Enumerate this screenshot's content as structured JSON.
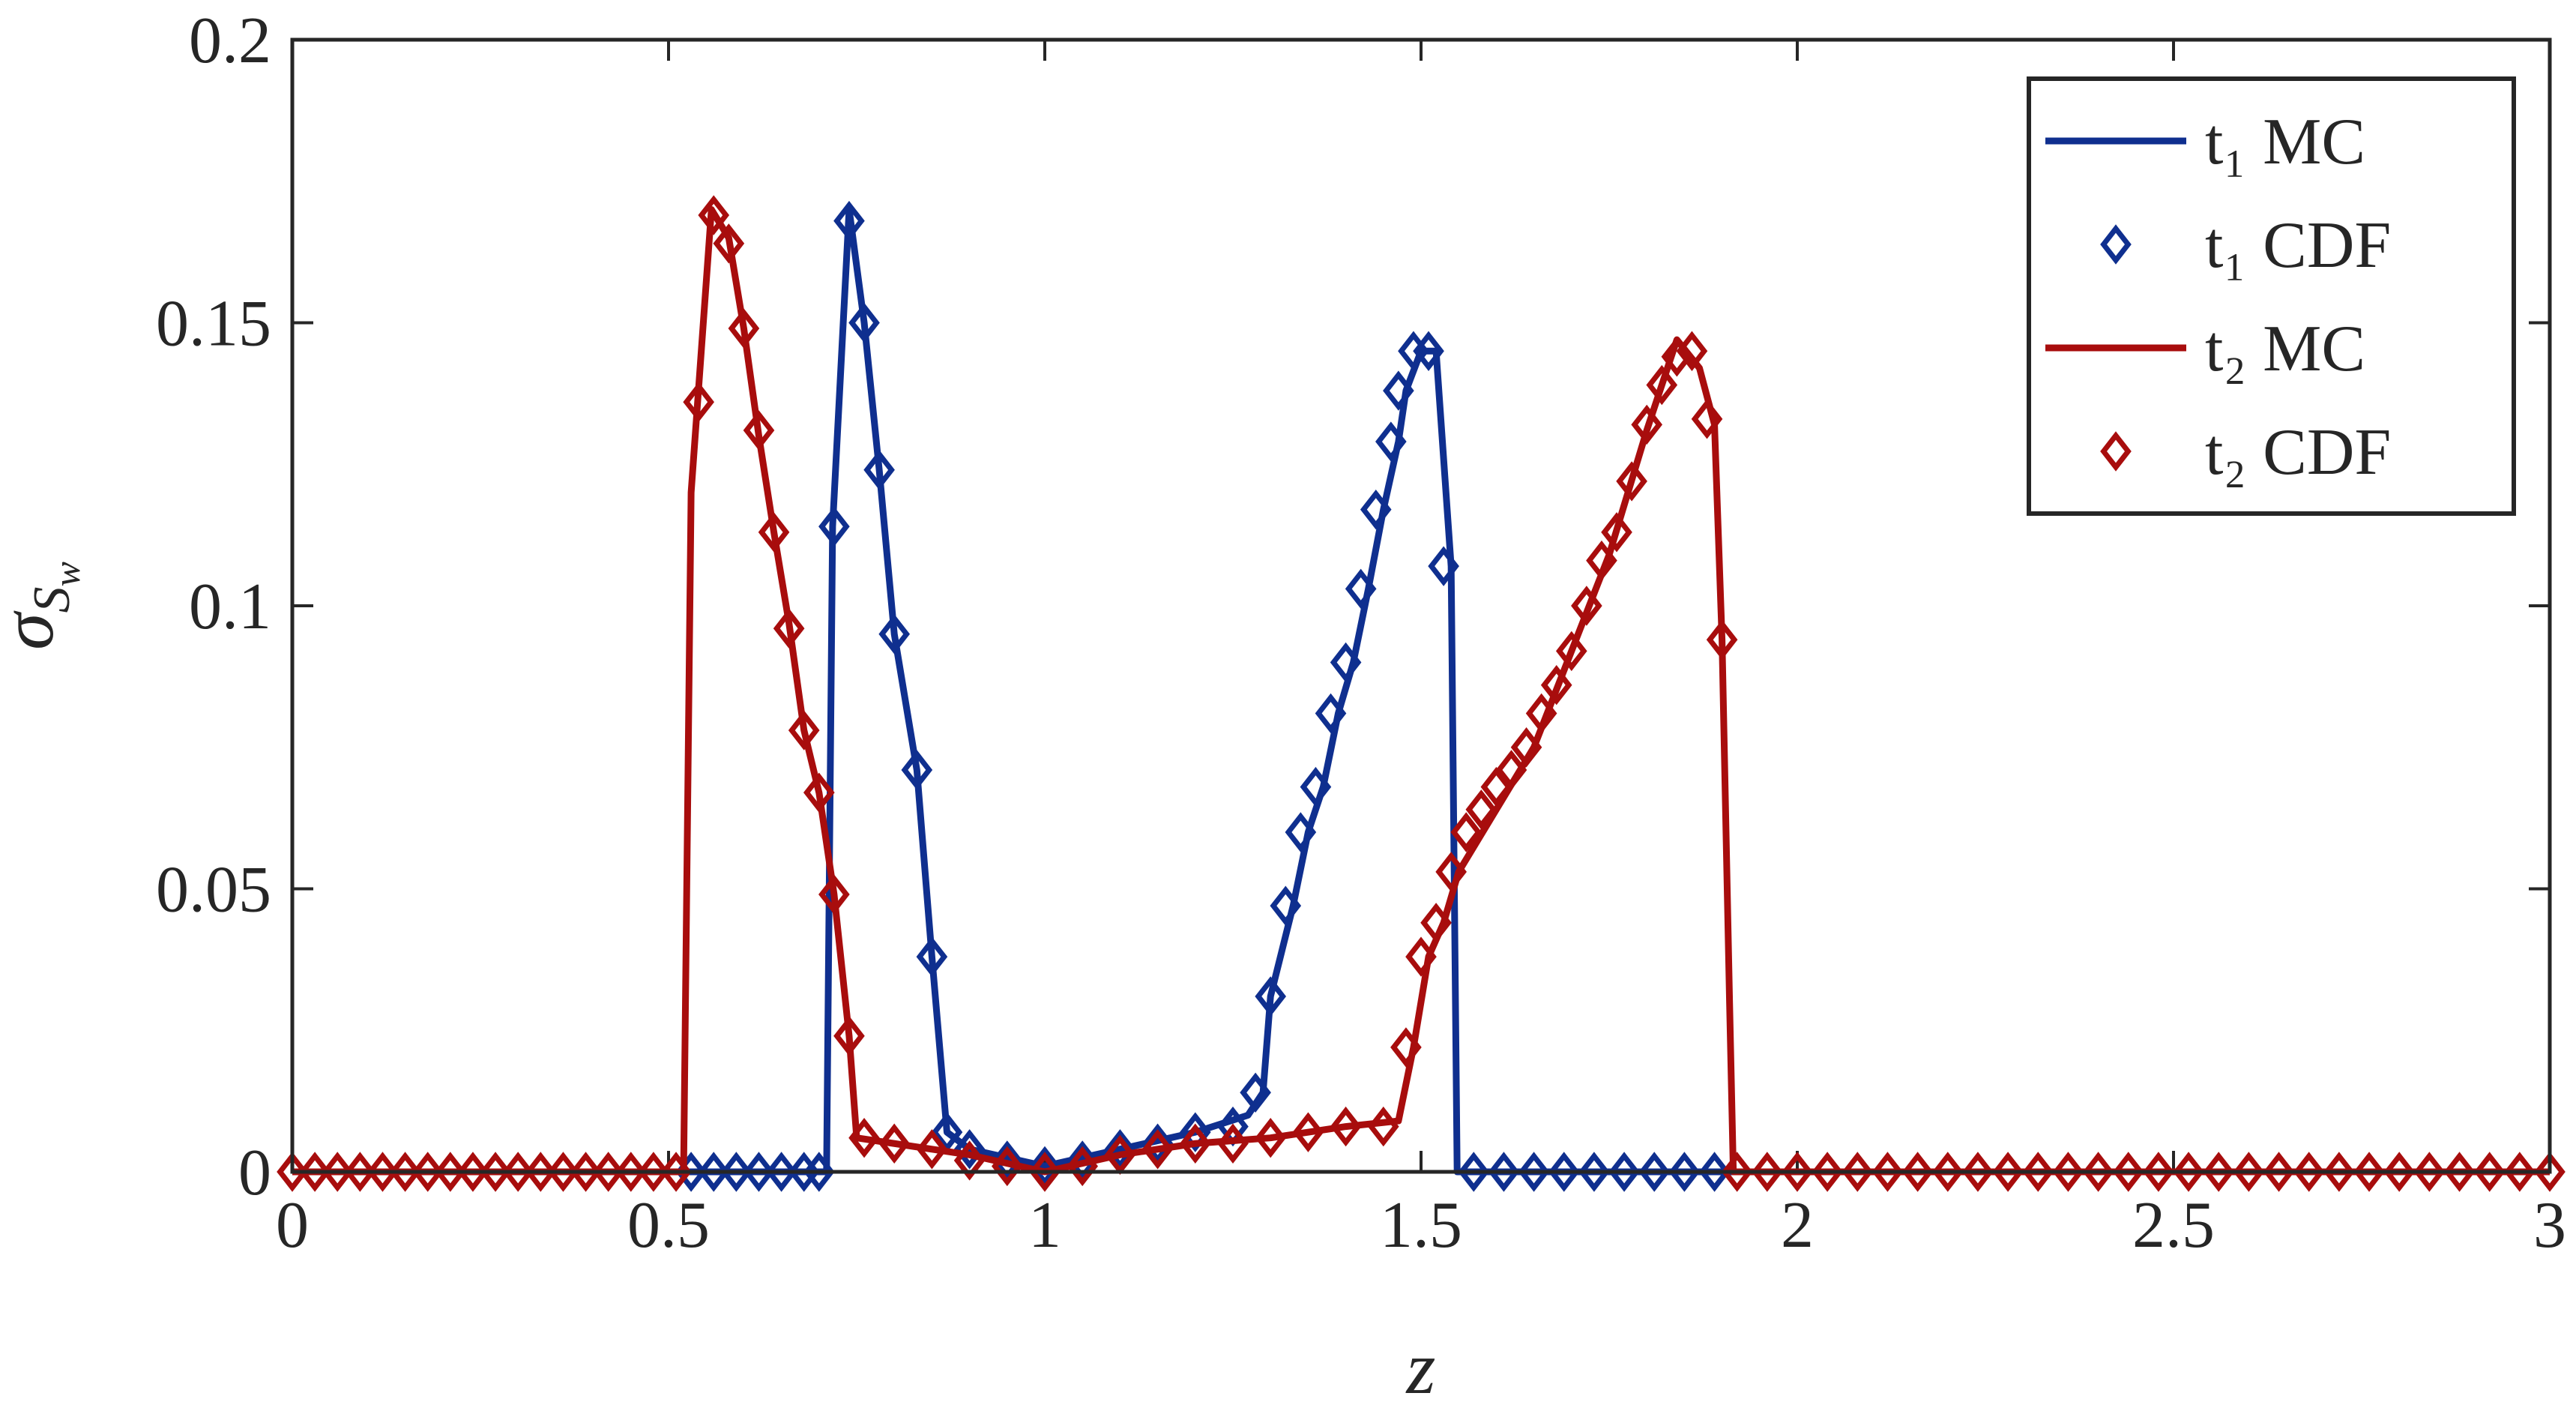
{
  "chart_data": {
    "type": "line",
    "xlabel": "z",
    "ylabel": [
      "σ",
      "S",
      "w"
    ],
    "xlim": [
      0,
      3
    ],
    "ylim": [
      0,
      0.2
    ],
    "xticks": [
      0,
      0.5,
      1,
      1.5,
      2,
      2.5,
      3
    ],
    "yticks": [
      0,
      0.05,
      0.1,
      0.15,
      0.2
    ],
    "grid": false,
    "legend": "northeast",
    "series": [
      {
        "name": "t₁ MC",
        "color": "#0f2f8f",
        "style": "line",
        "x": [
          0,
          0.71,
          0.718,
          0.74,
          0.76,
          0.78,
          0.8,
          0.83,
          0.85,
          0.87,
          0.9,
          1.0,
          1.1,
          1.2,
          1.27,
          1.29,
          1.3,
          1.33,
          1.35,
          1.37,
          1.39,
          1.41,
          1.43,
          1.45,
          1.47,
          1.48,
          1.5,
          1.52,
          1.54,
          1.548,
          3
        ],
        "values": [
          0,
          0,
          0.114,
          0.17,
          0.15,
          0.124,
          0.095,
          0.071,
          0.038,
          0.007,
          0.004,
          0.001,
          0.004,
          0.007,
          0.01,
          0.014,
          0.031,
          0.047,
          0.06,
          0.068,
          0.081,
          0.09,
          0.103,
          0.117,
          0.129,
          0.138,
          0.145,
          0.145,
          0.107,
          0,
          0
        ]
      },
      {
        "name": "t₁ CDF",
        "color": "#0f2f8f",
        "style": "marker",
        "x": [
          0.53,
          0.56,
          0.59,
          0.62,
          0.65,
          0.68,
          0.7,
          0.72,
          0.74,
          0.76,
          0.78,
          0.8,
          0.83,
          0.85,
          0.87,
          0.9,
          0.95,
          1.0,
          1.05,
          1.1,
          1.15,
          1.2,
          1.25,
          1.28,
          1.3,
          1.32,
          1.34,
          1.36,
          1.38,
          1.4,
          1.42,
          1.44,
          1.46,
          1.47,
          1.49,
          1.51,
          1.53,
          1.57,
          1.61,
          1.65,
          1.69,
          1.73,
          1.77,
          1.81,
          1.85,
          1.89
        ],
        "values": [
          0,
          0,
          0,
          0,
          0,
          0,
          0,
          0.114,
          0.168,
          0.15,
          0.124,
          0.095,
          0.071,
          0.038,
          0.007,
          0.004,
          0.002,
          0.001,
          0.002,
          0.004,
          0.005,
          0.007,
          0.008,
          0.014,
          0.031,
          0.047,
          0.06,
          0.068,
          0.081,
          0.09,
          0.103,
          0.117,
          0.129,
          0.138,
          0.145,
          0.145,
          0.107,
          0,
          0,
          0,
          0,
          0,
          0,
          0,
          0,
          0
        ]
      },
      {
        "name": "t₂ MC",
        "color": "#a80d0d",
        "style": "line",
        "x": [
          0,
          0.52,
          0.53,
          0.557,
          0.58,
          0.6,
          0.62,
          0.64,
          0.66,
          0.68,
          0.7,
          0.72,
          0.74,
          0.75,
          0.8,
          0.9,
          1.0,
          1.1,
          1.2,
          1.3,
          1.4,
          1.47,
          1.49,
          1.51,
          1.53,
          1.55,
          1.6,
          1.65,
          1.7,
          1.75,
          1.8,
          1.84,
          1.87,
          1.89,
          1.9,
          1.91,
          1.915,
          3
        ],
        "values": [
          0,
          0,
          0.12,
          0.17,
          0.165,
          0.149,
          0.13,
          0.113,
          0.097,
          0.078,
          0.067,
          0.049,
          0.024,
          0.006,
          0.005,
          0.003,
          0,
          0.003,
          0.005,
          0.006,
          0.008,
          0.009,
          0.022,
          0.038,
          0.044,
          0.053,
          0.064,
          0.075,
          0.092,
          0.109,
          0.131,
          0.147,
          0.142,
          0.132,
          0.094,
          0.03,
          0,
          0
        ]
      },
      {
        "name": "t₂ CDF",
        "color": "#a80d0d",
        "style": "marker",
        "x": [
          0,
          0.03,
          0.06,
          0.09,
          0.12,
          0.15,
          0.18,
          0.21,
          0.24,
          0.27,
          0.3,
          0.33,
          0.36,
          0.39,
          0.42,
          0.45,
          0.48,
          0.51,
          0.54,
          0.56,
          0.58,
          0.6,
          0.62,
          0.64,
          0.66,
          0.68,
          0.7,
          0.72,
          0.74,
          0.76,
          0.8,
          0.85,
          0.9,
          0.95,
          1.0,
          1.05,
          1.1,
          1.15,
          1.2,
          1.25,
          1.3,
          1.35,
          1.4,
          1.45,
          1.48,
          1.5,
          1.52,
          1.54,
          1.56,
          1.58,
          1.6,
          1.62,
          1.64,
          1.66,
          1.68,
          1.7,
          1.72,
          1.74,
          1.76,
          1.78,
          1.8,
          1.82,
          1.84,
          1.86,
          1.88,
          1.9,
          1.92,
          1.96,
          2.0,
          2.04,
          2.08,
          2.12,
          2.16,
          2.2,
          2.24,
          2.28,
          2.32,
          2.36,
          2.4,
          2.44,
          2.48,
          2.52,
          2.56,
          2.6,
          2.64,
          2.68,
          2.72,
          2.76,
          2.8,
          2.84,
          2.88,
          2.92,
          2.96,
          3.0
        ],
        "values": [
          0,
          0,
          0,
          0,
          0,
          0,
          0,
          0,
          0,
          0,
          0,
          0,
          0,
          0,
          0,
          0,
          0,
          0,
          0.136,
          0.169,
          0.164,
          0.149,
          0.131,
          0.113,
          0.096,
          0.078,
          0.067,
          0.049,
          0.024,
          0.006,
          0.005,
          0.004,
          0.002,
          0.001,
          0,
          0.001,
          0.003,
          0.004,
          0.005,
          0.005,
          0.006,
          0.007,
          0.008,
          0.008,
          0.022,
          0.038,
          0.044,
          0.053,
          0.06,
          0.064,
          0.068,
          0.071,
          0.075,
          0.081,
          0.086,
          0.092,
          0.1,
          0.108,
          0.113,
          0.122,
          0.132,
          0.139,
          0.144,
          0.145,
          0.133,
          0.094,
          0,
          0,
          0,
          0,
          0,
          0,
          0,
          0,
          0,
          0,
          0,
          0,
          0,
          0,
          0,
          0,
          0,
          0,
          0,
          0,
          0,
          0,
          0,
          0,
          0,
          0,
          0,
          0
        ]
      }
    ]
  }
}
